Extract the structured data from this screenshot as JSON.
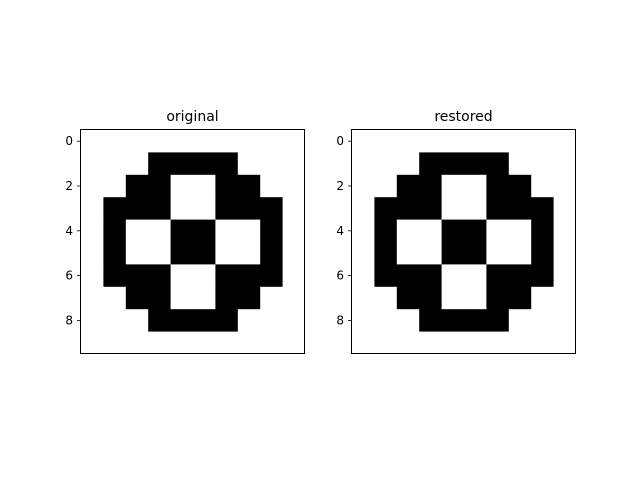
{
  "chart_data": [
    {
      "type": "heatmap",
      "title": "original",
      "xlabel": "",
      "ylabel": "",
      "colormap": "gray",
      "colors": {
        "on": "#000000",
        "off": "#ffffff"
      },
      "rows": 10,
      "cols": 10,
      "xlim": [
        -0.5,
        9.5
      ],
      "ylim": [
        9.5,
        -0.5
      ],
      "yticks": [
        0,
        2,
        4,
        6,
        8
      ],
      "ytick_labels": [
        "0",
        "2",
        "4",
        "6",
        "8"
      ],
      "xticks": [],
      "values": [
        [
          0,
          0,
          0,
          0,
          0,
          0,
          0,
          0,
          0,
          0
        ],
        [
          0,
          0,
          0,
          1,
          1,
          1,
          1,
          0,
          0,
          0
        ],
        [
          0,
          0,
          1,
          1,
          0,
          0,
          1,
          1,
          0,
          0
        ],
        [
          0,
          1,
          1,
          1,
          0,
          0,
          1,
          1,
          1,
          0
        ],
        [
          0,
          1,
          0,
          0,
          1,
          1,
          0,
          0,
          1,
          0
        ],
        [
          0,
          1,
          0,
          0,
          1,
          1,
          0,
          0,
          1,
          0
        ],
        [
          0,
          1,
          1,
          1,
          0,
          0,
          1,
          1,
          1,
          0
        ],
        [
          0,
          0,
          1,
          1,
          0,
          0,
          1,
          1,
          0,
          0
        ],
        [
          0,
          0,
          0,
          1,
          1,
          1,
          1,
          0,
          0,
          0
        ],
        [
          0,
          0,
          0,
          0,
          0,
          0,
          0,
          0,
          0,
          0
        ]
      ]
    },
    {
      "type": "heatmap",
      "title": "restored",
      "xlabel": "",
      "ylabel": "",
      "colormap": "gray",
      "colors": {
        "on": "#000000",
        "off": "#ffffff"
      },
      "rows": 10,
      "cols": 10,
      "xlim": [
        -0.5,
        9.5
      ],
      "ylim": [
        9.5,
        -0.5
      ],
      "yticks": [
        0,
        2,
        4,
        6,
        8
      ],
      "ytick_labels": [
        "0",
        "2",
        "4",
        "6",
        "8"
      ],
      "xticks": [],
      "values": [
        [
          0,
          0,
          0,
          0,
          0,
          0,
          0,
          0,
          0,
          0
        ],
        [
          0,
          0,
          0,
          1,
          1,
          1,
          1,
          0,
          0,
          0
        ],
        [
          0,
          0,
          1,
          1,
          0,
          0,
          1,
          1,
          0,
          0
        ],
        [
          0,
          1,
          1,
          1,
          0,
          0,
          1,
          1,
          1,
          0
        ],
        [
          0,
          1,
          0,
          0,
          1,
          1,
          0,
          0,
          1,
          0
        ],
        [
          0,
          1,
          0,
          0,
          1,
          1,
          0,
          0,
          1,
          0
        ],
        [
          0,
          1,
          1,
          1,
          0,
          0,
          1,
          1,
          1,
          0
        ],
        [
          0,
          0,
          1,
          1,
          0,
          0,
          1,
          1,
          0,
          0
        ],
        [
          0,
          0,
          0,
          1,
          1,
          1,
          1,
          0,
          0,
          0
        ],
        [
          0,
          0,
          0,
          0,
          0,
          0,
          0,
          0,
          0,
          0
        ]
      ]
    }
  ]
}
